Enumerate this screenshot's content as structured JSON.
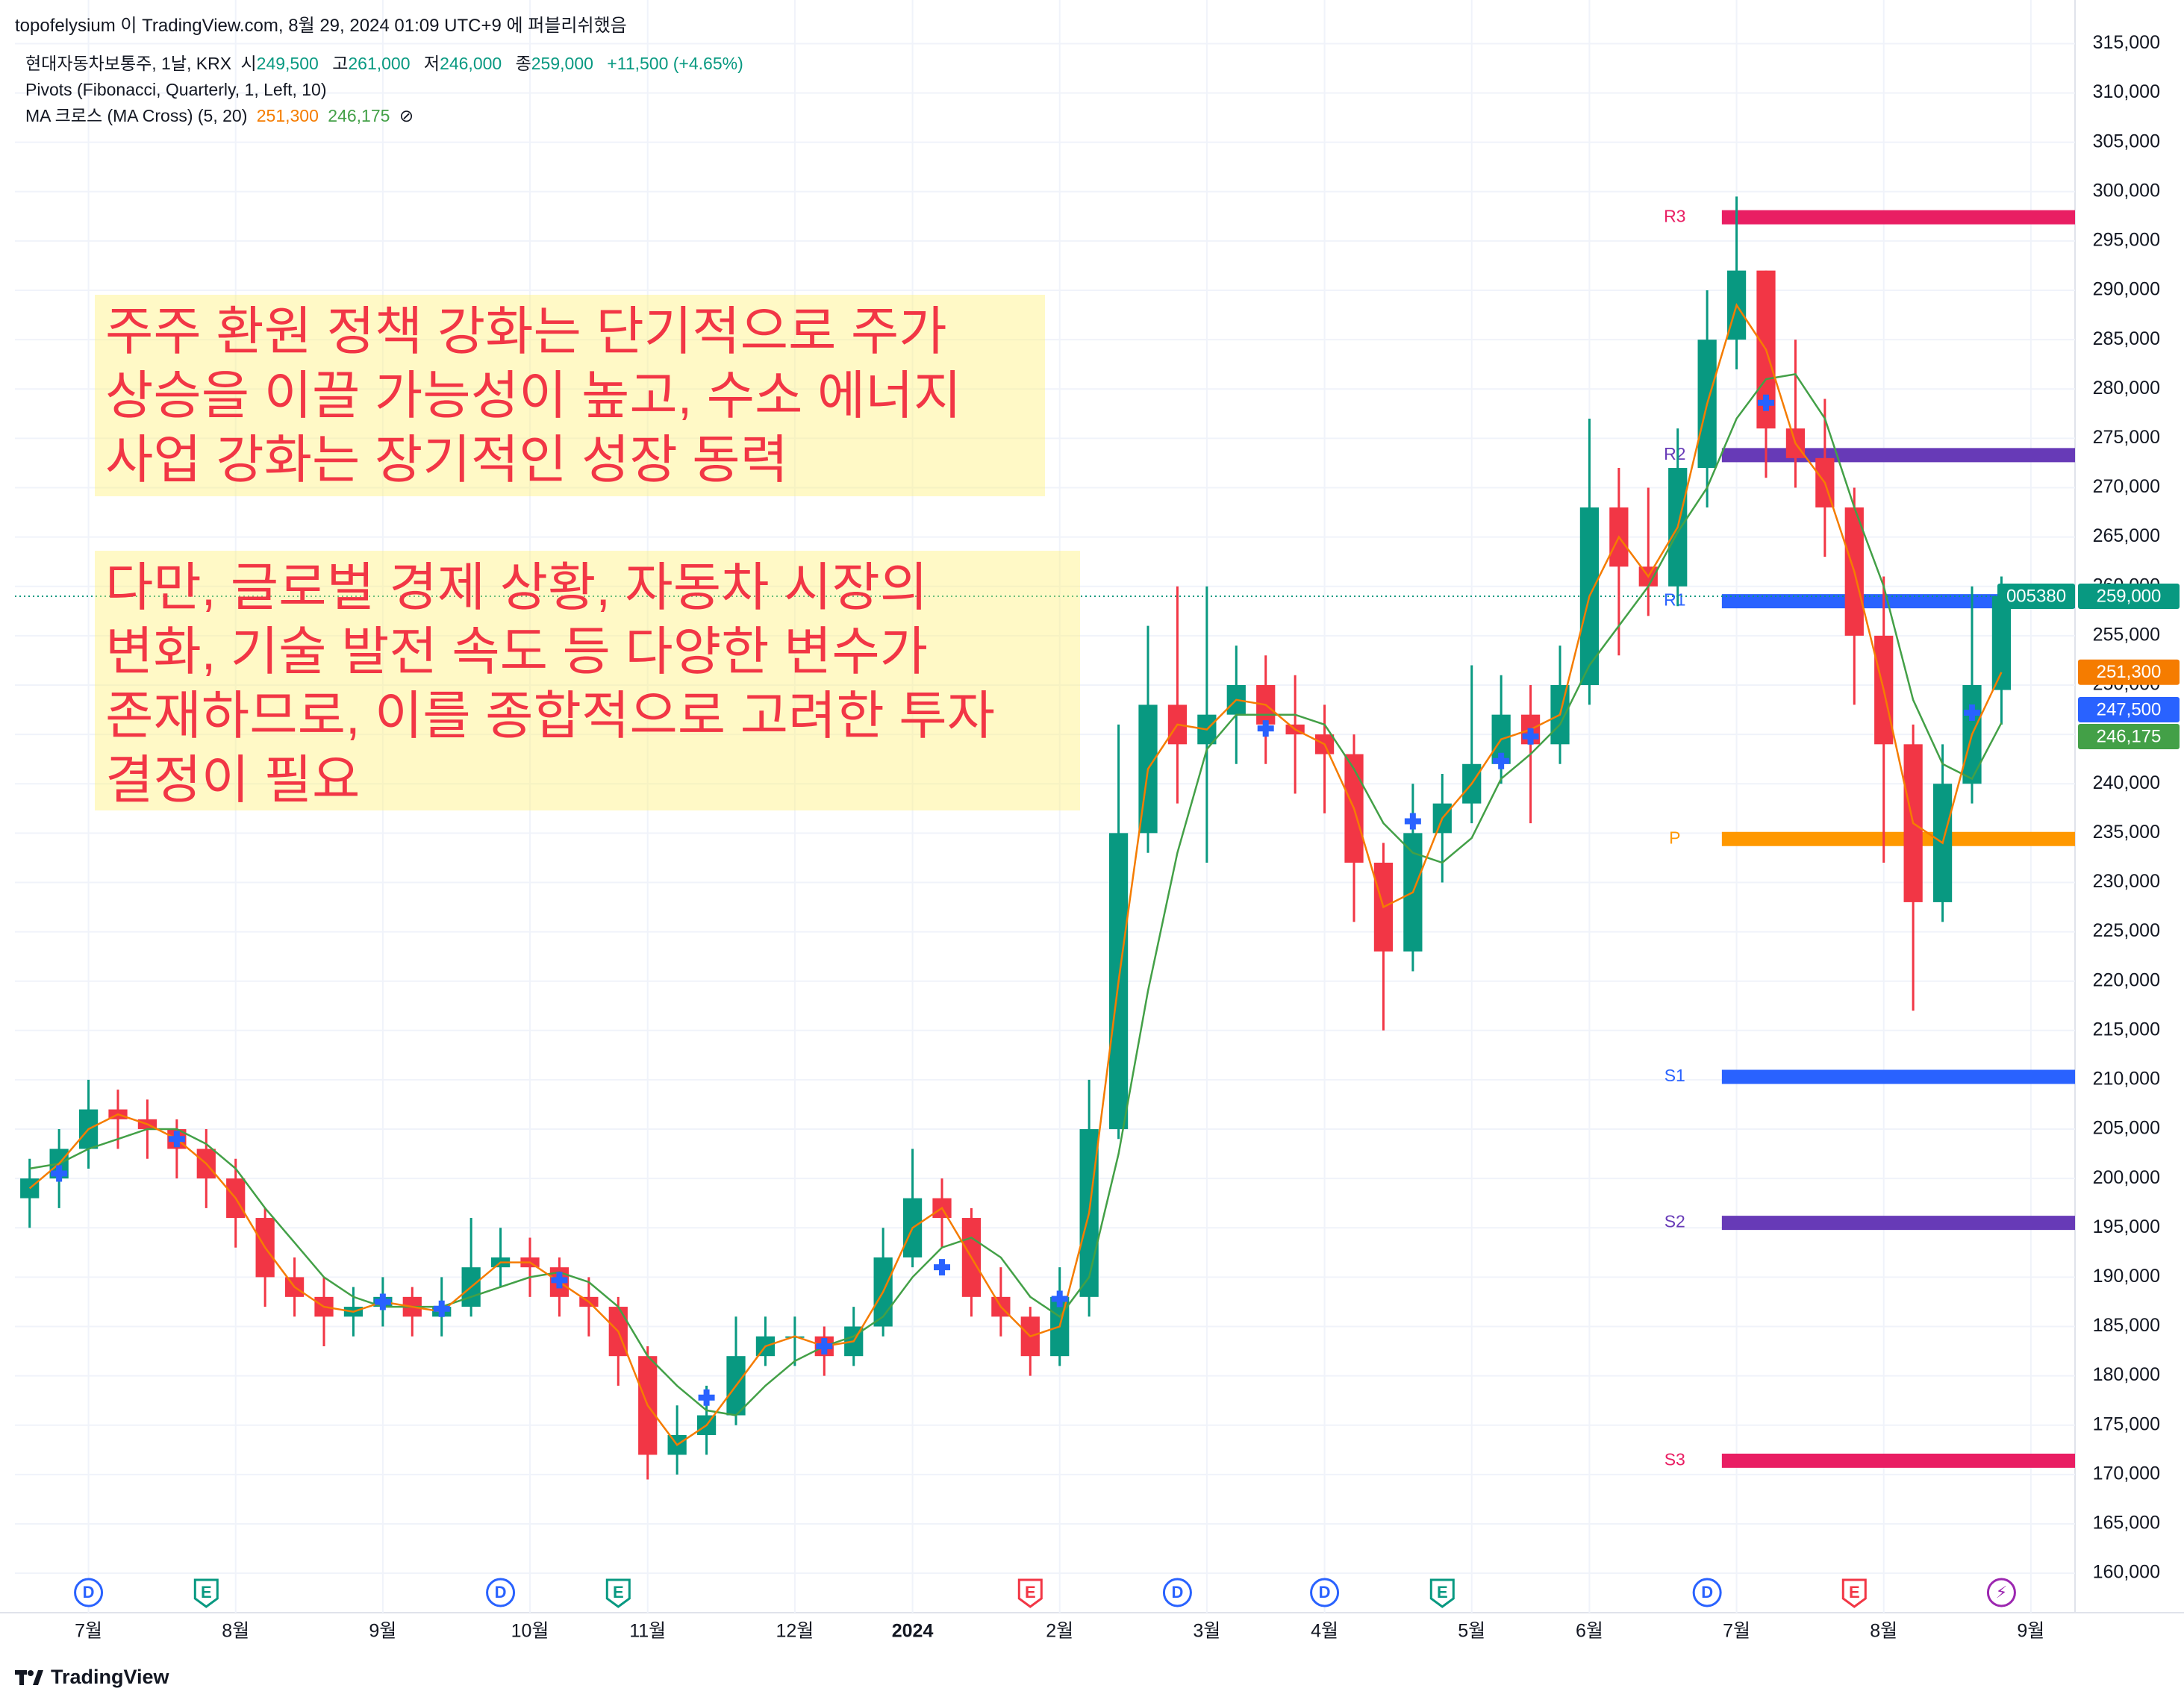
{
  "header": {
    "publisher": "topofelysium 이 TradingView.com, 8월 29, 2024 01:09 UTC+9 에 퍼블리쉬했음",
    "brand": "TradingView"
  },
  "chart_data": {
    "type": "candlestick",
    "symbol": "현대자동차보통주, 1날, KRX",
    "ohlc_legend": [
      {
        "label": "시",
        "value": "249,500"
      },
      {
        "label": "고",
        "value": "261,000"
      },
      {
        "label": "저",
        "value": "246,000"
      },
      {
        "label": "종",
        "value": "259,000"
      }
    ],
    "change": "+11,500 (+4.65%)",
    "pivots_title": "Pivots (Fibonacci, Quarterly, 1, Left, 10)",
    "ma_title": "MA 크로스 (MA Cross) (5, 20)",
    "ma_legend_values": [
      "251,300",
      "246,175"
    ],
    "ma_legend_icon": "⊘",
    "categories": [
      null,
      null,
      "7월",
      null,
      null,
      null,
      null,
      "8월",
      null,
      null,
      null,
      null,
      "9월",
      null,
      null,
      null,
      null,
      "10월",
      null,
      null,
      null,
      "11월",
      null,
      null,
      null,
      null,
      "12월",
      null,
      null,
      null,
      "2024",
      null,
      null,
      null,
      null,
      "2월",
      null,
      null,
      null,
      null,
      "3월",
      null,
      null,
      null,
      "4월",
      null,
      null,
      null,
      null,
      "5월",
      null,
      null,
      null,
      "6월",
      null,
      null,
      null,
      null,
      "7월",
      null,
      null,
      null,
      null,
      "8월",
      null,
      null,
      null,
      null,
      "9월",
      null
    ],
    "open": [
      198000,
      200000,
      203000,
      207000,
      206000,
      205000,
      203000,
      200000,
      196000,
      190000,
      188000,
      186000,
      187000,
      188000,
      186000,
      187000,
      191000,
      192000,
      191000,
      188000,
      187000,
      182000,
      172000,
      174000,
      176000,
      182000,
      184000,
      184000,
      182000,
      185000,
      192000,
      198000,
      196000,
      188000,
      186000,
      182000,
      188000,
      205000,
      235000,
      248000,
      244000,
      247000,
      250000,
      246000,
      245000,
      243000,
      232000,
      223000,
      235000,
      238000,
      242000,
      247000,
      244000,
      250000,
      268000,
      262000,
      260000,
      272000,
      285000,
      292000,
      276000,
      273000,
      268000,
      255000,
      244000,
      228000,
      240000,
      249500,
      null,
      null
    ],
    "high": [
      202000,
      205000,
      210000,
      209000,
      208000,
      206000,
      205000,
      202000,
      197000,
      192000,
      190000,
      189000,
      190000,
      189000,
      190000,
      196000,
      195000,
      194000,
      192000,
      190000,
      188000,
      183000,
      177000,
      179000,
      186000,
      186000,
      186000,
      185000,
      187000,
      195000,
      203000,
      200000,
      197000,
      191000,
      187000,
      191000,
      210000,
      246000,
      256000,
      260000,
      260000,
      254000,
      253000,
      251000,
      248000,
      245000,
      234000,
      240000,
      241000,
      252000,
      251000,
      250000,
      254000,
      277000,
      272000,
      270000,
      276000,
      290000,
      299500,
      292000,
      285000,
      279000,
      270000,
      261000,
      246000,
      244000,
      260000,
      261000,
      null,
      null
    ],
    "low": [
      195000,
      197000,
      201000,
      203000,
      202000,
      200000,
      197000,
      193000,
      187000,
      186000,
      183000,
      184000,
      185000,
      184000,
      184000,
      186000,
      189000,
      188000,
      186000,
      184000,
      179000,
      169500,
      170000,
      172000,
      175000,
      181000,
      181000,
      180000,
      181000,
      184000,
      191000,
      193000,
      186000,
      184000,
      180000,
      181000,
      186000,
      204000,
      233000,
      238000,
      232000,
      242000,
      242000,
      239000,
      237000,
      226000,
      215000,
      221000,
      230000,
      236000,
      240000,
      236000,
      242000,
      248000,
      253000,
      257000,
      258000,
      268000,
      282000,
      271000,
      270000,
      263000,
      248000,
      232000,
      217000,
      226000,
      238000,
      246000,
      null,
      null
    ],
    "close": [
      200000,
      203000,
      207000,
      206000,
      205000,
      203000,
      200000,
      196000,
      190000,
      188000,
      186000,
      187000,
      188000,
      186000,
      187000,
      191000,
      192000,
      191000,
      188000,
      187000,
      182000,
      172000,
      174000,
      176000,
      182000,
      184000,
      184000,
      182000,
      185000,
      192000,
      198000,
      196000,
      188000,
      186000,
      182000,
      188000,
      205000,
      235000,
      248000,
      244000,
      247000,
      250000,
      246000,
      245000,
      243000,
      232000,
      223000,
      235000,
      238000,
      242000,
      247000,
      244000,
      250000,
      268000,
      262000,
      260000,
      272000,
      285000,
      292000,
      276000,
      273000,
      268000,
      255000,
      244000,
      228000,
      240000,
      250000,
      259000,
      null,
      null
    ],
    "up_color": "#089981",
    "down_color": "#f23645",
    "ma_fast": {
      "color": "#f57c00",
      "values": [
        199000,
        201500,
        205000,
        206500,
        205500,
        204000,
        201500,
        198000,
        193000,
        189000,
        187000,
        186500,
        187500,
        187000,
        186500,
        189000,
        191500,
        191500,
        189500,
        187500,
        184500,
        177000,
        173000,
        175000,
        179000,
        183000,
        184000,
        183000,
        183500,
        188500,
        195000,
        197000,
        192000,
        187000,
        184000,
        185000,
        196500,
        220000,
        241500,
        246000,
        245500,
        248500,
        248000,
        245500,
        244000,
        237500,
        227500,
        229000,
        236500,
        240000,
        244500,
        245500,
        247000,
        259000,
        265000,
        261000,
        266000,
        278500,
        288500,
        284000,
        274500,
        270500,
        261500,
        249500,
        236000,
        234000,
        245000,
        251300,
        null,
        null
      ]
    },
    "ma_slow": {
      "color": "#43a047",
      "values": [
        201000,
        201500,
        203000,
        204000,
        205000,
        205000,
        203500,
        201000,
        197000,
        193500,
        190000,
        188000,
        187000,
        187000,
        187000,
        188000,
        189000,
        190000,
        190500,
        189500,
        187000,
        182000,
        179000,
        176500,
        176000,
        179000,
        181500,
        183000,
        184000,
        186000,
        190000,
        193000,
        194000,
        192000,
        188000,
        186000,
        190000,
        202500,
        219000,
        233000,
        243500,
        247000,
        247000,
        247000,
        246000,
        241500,
        236000,
        233000,
        232000,
        234500,
        240500,
        243000,
        246000,
        252000,
        256000,
        260000,
        265500,
        270000,
        277000,
        281000,
        281500,
        277000,
        268000,
        260000,
        248500,
        242000,
        240500,
        246175,
        null,
        null
      ]
    },
    "crosses": {
      "color": "#2962ff",
      "values": [
        null,
        200500,
        null,
        null,
        null,
        204000,
        null,
        null,
        null,
        null,
        null,
        null,
        187500,
        null,
        186800,
        null,
        null,
        null,
        189700,
        null,
        null,
        null,
        null,
        177800,
        null,
        null,
        null,
        183000,
        null,
        null,
        null,
        191000,
        null,
        null,
        null,
        187800,
        null,
        null,
        null,
        null,
        null,
        null,
        245600,
        null,
        null,
        null,
        null,
        236200,
        null,
        null,
        242300,
        244800,
        null,
        null,
        null,
        null,
        null,
        null,
        null,
        278600,
        null,
        null,
        null,
        null,
        null,
        null,
        247200,
        null,
        null,
        null
      ]
    },
    "events": [
      null,
      null,
      {
        "label": "D",
        "color": "#2962ff"
      },
      null,
      null,
      null,
      {
        "label": "E",
        "color": "#089981"
      },
      null,
      null,
      null,
      null,
      null,
      null,
      null,
      null,
      null,
      {
        "label": "D",
        "color": "#2962ff"
      },
      null,
      null,
      null,
      {
        "label": "E",
        "color": "#089981"
      },
      null,
      null,
      null,
      null,
      null,
      null,
      null,
      null,
      null,
      null,
      null,
      null,
      null,
      {
        "label": "E",
        "color": "#f23645"
      },
      null,
      null,
      null,
      null,
      {
        "label": "D",
        "color": "#2962ff"
      },
      null,
      null,
      null,
      null,
      {
        "label": "D",
        "color": "#2962ff"
      },
      null,
      null,
      null,
      {
        "label": "E",
        "color": "#089981"
      },
      null,
      null,
      null,
      null,
      null,
      null,
      null,
      null,
      {
        "label": "D",
        "color": "#2962ff"
      },
      null,
      null,
      null,
      null,
      {
        "label": "E",
        "color": "#f23645"
      },
      null,
      null,
      null,
      null,
      {
        "label": "⚡",
        "color": "#9c27b0"
      },
      null,
      null
    ],
    "pivots": [
      {
        "label": "R3",
        "value": 297400,
        "color": "#e91e63"
      },
      {
        "label": "R2",
        "value": 273300,
        "color": "#673ab7"
      },
      {
        "label": "R1",
        "value": 258500,
        "color": "#2962ff"
      },
      {
        "label": "P",
        "value": 234400,
        "color": "#ff9800"
      },
      {
        "label": "S1",
        "value": 210300,
        "color": "#2962ff"
      },
      {
        "label": "S2",
        "value": 195500,
        "color": "#673ab7"
      },
      {
        "label": "S3",
        "value": 171400,
        "color": "#e91e63"
      }
    ],
    "symbol_tag": "005380",
    "price_tags": [
      {
        "value": 259000,
        "label": "259,000",
        "color": "#089981"
      },
      {
        "value": 251300,
        "label": "251,300",
        "color": "#f57c00"
      },
      {
        "value": 247500,
        "label": "247,500",
        "color": "#2962ff"
      },
      {
        "value": 246175,
        "label": "246,175",
        "color": "#43a047"
      }
    ],
    "ylim": [
      156000,
      317000
    ],
    "yticks": [
      {
        "value": 160000,
        "label": "160,000"
      },
      {
        "value": 165000,
        "label": "165,000"
      },
      {
        "value": 170000,
        "label": "170,000"
      },
      {
        "value": 175000,
        "label": "175,000"
      },
      {
        "value": 180000,
        "label": "180,000"
      },
      {
        "value": 185000,
        "label": "185,000"
      },
      {
        "value": 190000,
        "label": "190,000"
      },
      {
        "value": 195000,
        "label": "195,000"
      },
      {
        "value": 200000,
        "label": "200,000"
      },
      {
        "value": 205000,
        "label": "205,000"
      },
      {
        "value": 210000,
        "label": "210,000"
      },
      {
        "value": 215000,
        "label": "215,000"
      },
      {
        "value": 220000,
        "label": "220,000"
      },
      {
        "value": 225000,
        "label": "225,000"
      },
      {
        "value": 230000,
        "label": "230,000"
      },
      {
        "value": 235000,
        "label": "235,000"
      },
      {
        "value": 240000,
        "label": "240,000"
      },
      {
        "value": 245000,
        "label": "245,000"
      },
      {
        "value": 250000,
        "label": "250,000"
      },
      {
        "value": 255000,
        "label": "255,000"
      },
      {
        "value": 260000,
        "label": "260,000"
      },
      {
        "value": 265000,
        "label": "265,000"
      },
      {
        "value": 270000,
        "label": "270,000"
      },
      {
        "value": 275000,
        "label": "275,000"
      },
      {
        "value": 280000,
        "label": "280,000"
      },
      {
        "value": 285000,
        "label": "285,000"
      },
      {
        "value": 290000,
        "label": "290,000"
      },
      {
        "value": 295000,
        "label": "295,000"
      },
      {
        "value": 300000,
        "label": "300,000"
      },
      {
        "value": 305000,
        "label": "305,000"
      },
      {
        "value": 310000,
        "label": "310,000"
      },
      {
        "value": 315000,
        "label": "315,000"
      }
    ],
    "grid": true,
    "annotations": [
      {
        "lines": [
          "주주 환원 정책 강화는 단기적으로 주가",
          "상승을 이끌 가능성이 높고, 수소 에너지",
          "사업 강화는 장기적인 성장 동력"
        ]
      },
      {
        "lines": [
          "다만, 글로벌 경제 상황, 자동차 시장의",
          "변화, 기술 발전 속도 등 다양한 변수가",
          "존재하므로, 이를 종합적으로 고려한 투자",
          "결정이 필요"
        ]
      }
    ]
  }
}
